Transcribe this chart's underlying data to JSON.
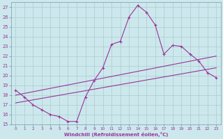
{
  "xlabel": "Windchill (Refroidissement éolien,°C)",
  "x_ticks": [
    0,
    1,
    2,
    3,
    4,
    5,
    6,
    7,
    8,
    9,
    10,
    11,
    12,
    13,
    14,
    15,
    16,
    17,
    18,
    19,
    20,
    21,
    22,
    23
  ],
  "ylim": [
    15,
    27.5
  ],
  "xlim": [
    -0.5,
    23.5
  ],
  "bg_color": "#cce8ec",
  "line_color": "#993399",
  "grid_color": "#aaccd0",
  "curve_x": [
    0,
    1,
    2,
    3,
    4,
    5,
    6,
    7,
    8,
    9,
    10,
    11,
    12,
    13,
    14,
    15,
    16,
    17,
    18,
    19,
    20,
    21,
    22,
    23
  ],
  "curve_y": [
    18.5,
    17.8,
    17.0,
    16.5,
    16.0,
    15.8,
    15.3,
    15.3,
    17.8,
    19.5,
    20.8,
    23.2,
    23.5,
    26.0,
    27.2,
    26.5,
    25.2,
    22.2,
    23.1,
    23.0,
    22.2,
    21.5,
    20.3,
    19.8
  ],
  "line1_x": [
    0,
    23
  ],
  "line1_y": [
    18.0,
    22.0
  ],
  "line2_x": [
    0,
    23
  ],
  "line2_y": [
    17.2,
    20.8
  ],
  "yticks": [
    15,
    16,
    17,
    18,
    19,
    20,
    21,
    22,
    23,
    24,
    25,
    26,
    27
  ]
}
